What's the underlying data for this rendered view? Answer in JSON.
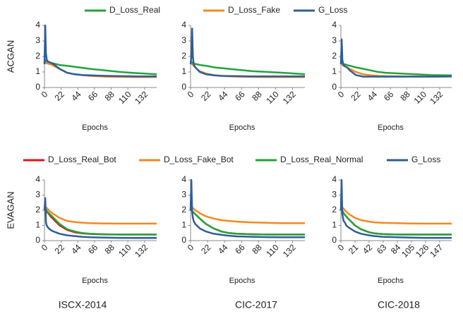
{
  "chart_data": [
    {
      "type": "line",
      "ylabel": "ACGAN",
      "xlabel": "Epochs",
      "x": [
        0,
        1,
        2,
        3,
        4,
        6,
        8,
        12,
        20,
        30,
        40,
        50,
        60,
        80,
        100,
        120,
        148
      ],
      "xlim": [
        0,
        148
      ],
      "xticks": [
        0,
        22,
        44,
        66,
        88,
        110,
        132
      ],
      "ylim": [
        0,
        4
      ],
      "yticks": [
        0,
        1,
        2,
        3,
        4
      ],
      "series": [
        {
          "name": "D_Loss_Real",
          "color": "#22a33a",
          "values": [
            1.8,
            1.75,
            1.7,
            1.68,
            1.65,
            1.62,
            1.6,
            1.55,
            1.45,
            1.4,
            1.33,
            1.27,
            1.2,
            1.1,
            1.0,
            0.93,
            0.85
          ]
        },
        {
          "name": "D_Loss_Fake",
          "color": "#f5881f",
          "values": [
            1.6,
            1.6,
            1.58,
            1.55,
            1.55,
            1.52,
            1.5,
            1.4,
            1.2,
            0.95,
            0.85,
            0.8,
            0.75,
            0.7,
            0.68,
            0.67,
            0.67
          ]
        },
        {
          "name": "G_Loss",
          "color": "#2f5d98",
          "values": [
            1.5,
            4.0,
            2.2,
            1.8,
            1.7,
            1.65,
            1.6,
            1.5,
            1.2,
            0.95,
            0.85,
            0.8,
            0.78,
            0.75,
            0.73,
            0.72,
            0.72
          ]
        }
      ]
    },
    {
      "type": "line",
      "xlabel": "Epochs",
      "x": [
        0,
        1,
        2,
        3,
        4,
        6,
        8,
        12,
        20,
        30,
        40,
        50,
        60,
        80,
        100,
        120,
        148
      ],
      "xlim": [
        0,
        148
      ],
      "xticks": [
        0,
        22,
        44,
        66,
        88,
        110,
        132
      ],
      "ylim": [
        0,
        4
      ],
      "yticks": [
        0,
        1,
        2,
        3,
        4
      ],
      "series": [
        {
          "color": "#22a33a",
          "values": [
            1.7,
            1.65,
            1.6,
            1.58,
            1.55,
            1.52,
            1.5,
            1.45,
            1.4,
            1.3,
            1.25,
            1.2,
            1.15,
            1.05,
            1.0,
            0.95,
            0.85
          ]
        },
        {
          "color": "#f5881f",
          "values": [
            1.6,
            1.55,
            1.5,
            1.45,
            1.4,
            1.3,
            1.2,
            1.05,
            0.9,
            0.8,
            0.75,
            0.72,
            0.7,
            0.68,
            0.67,
            0.67,
            0.67
          ]
        },
        {
          "color": "#2f5d98",
          "values": [
            1.5,
            2.0,
            3.8,
            2.0,
            1.5,
            1.3,
            1.2,
            1.0,
            0.85,
            0.78,
            0.75,
            0.74,
            0.73,
            0.72,
            0.72,
            0.72,
            0.72
          ]
        }
      ]
    },
    {
      "type": "line",
      "xlabel": "Epochs",
      "x": [
        0,
        1,
        2,
        3,
        4,
        6,
        8,
        12,
        20,
        30,
        40,
        50,
        60,
        80,
        100,
        120,
        148
      ],
      "xlim": [
        0,
        148
      ],
      "xticks": [
        0,
        22,
        44,
        66,
        88,
        110,
        132
      ],
      "ylim": [
        0,
        4
      ],
      "yticks": [
        0,
        1,
        2,
        3,
        4
      ],
      "series": [
        {
          "color": "#22a33a",
          "values": [
            1.6,
            1.6,
            1.55,
            1.55,
            1.5,
            1.48,
            1.45,
            1.4,
            1.3,
            1.2,
            1.1,
            1.0,
            0.95,
            0.9,
            0.85,
            0.8,
            0.78
          ]
        },
        {
          "color": "#f5881f",
          "values": [
            1.5,
            1.5,
            1.45,
            1.45,
            1.4,
            1.35,
            1.3,
            1.2,
            1.0,
            0.85,
            0.78,
            0.75,
            0.73,
            0.72,
            0.71,
            0.7,
            0.7
          ]
        },
        {
          "color": "#2f5d98",
          "values": [
            1.5,
            3.1,
            1.8,
            1.5,
            1.4,
            1.35,
            1.3,
            1.1,
            0.8,
            0.7,
            0.7,
            0.7,
            0.7,
            0.7,
            0.7,
            0.7,
            0.72
          ]
        }
      ]
    },
    {
      "type": "line",
      "ylabel": "EVAGAN",
      "xlabel": "Epochs",
      "caption": "ISCX-2014",
      "x": [
        0,
        1,
        2,
        3,
        4,
        6,
        8,
        12,
        20,
        30,
        40,
        50,
        60,
        80,
        100,
        120,
        148
      ],
      "xlim": [
        0,
        148
      ],
      "xticks": [
        0,
        22,
        44,
        66,
        88,
        110,
        132
      ],
      "ylim": [
        0,
        4
      ],
      "yticks": [
        0,
        1,
        2,
        3,
        4
      ],
      "series": [
        {
          "name": "D_Loss_Real_Bot",
          "color": "#e0151b",
          "values": [
            2.2,
            2.15,
            2.05,
            1.95,
            1.85,
            1.75,
            1.6,
            1.4,
            1.0,
            0.7,
            0.55,
            0.48,
            0.44,
            0.41,
            0.4,
            0.4,
            0.4
          ]
        },
        {
          "name": "D_Loss_Fake_Bot",
          "color": "#f5881f",
          "values": [
            2.3,
            2.25,
            2.2,
            2.15,
            2.1,
            2.0,
            1.9,
            1.75,
            1.5,
            1.3,
            1.22,
            1.18,
            1.15,
            1.13,
            1.12,
            1.12,
            1.12
          ]
        },
        {
          "name": "D_Loss_Real_Normal",
          "color": "#22a33a",
          "values": [
            2.2,
            2.1,
            2.0,
            1.95,
            1.9,
            1.8,
            1.7,
            1.5,
            1.1,
            0.75,
            0.6,
            0.5,
            0.45,
            0.42,
            0.4,
            0.4,
            0.4
          ]
        },
        {
          "name": "G_Loss",
          "color": "#2f5d98",
          "values": [
            2.0,
            2.8,
            1.2,
            1.0,
            0.9,
            0.8,
            0.7,
            0.6,
            0.45,
            0.35,
            0.3,
            0.25,
            0.22,
            0.2,
            0.18,
            0.17,
            0.17
          ]
        }
      ]
    },
    {
      "type": "line",
      "xlabel": "Epochs",
      "caption": "CIC-2017",
      "x": [
        0,
        1,
        2,
        3,
        4,
        6,
        8,
        12,
        20,
        30,
        40,
        50,
        60,
        80,
        100,
        120,
        148
      ],
      "xlim": [
        0,
        148
      ],
      "xticks": [
        0,
        22,
        44,
        66,
        88,
        110,
        132
      ],
      "ylim": [
        0,
        4
      ],
      "yticks": [
        0,
        1,
        2,
        3,
        4
      ],
      "series": [
        {
          "color": "#e0151b",
          "values": [
            2.1,
            2.0,
            1.95,
            1.9,
            1.85,
            1.75,
            1.65,
            1.45,
            1.1,
            0.8,
            0.6,
            0.5,
            0.45,
            0.42,
            0.4,
            0.4,
            0.4
          ]
        },
        {
          "color": "#f5881f",
          "values": [
            2.3,
            2.25,
            2.2,
            2.15,
            2.1,
            2.0,
            1.95,
            1.8,
            1.6,
            1.45,
            1.35,
            1.3,
            1.25,
            1.2,
            1.17,
            1.15,
            1.15
          ]
        },
        {
          "color": "#22a33a",
          "values": [
            2.1,
            2.0,
            1.95,
            1.9,
            1.85,
            1.75,
            1.65,
            1.45,
            1.1,
            0.8,
            0.6,
            0.5,
            0.45,
            0.42,
            0.4,
            0.4,
            0.4
          ]
        },
        {
          "color": "#2f5d98",
          "values": [
            2.0,
            4.0,
            1.9,
            1.5,
            1.3,
            1.1,
            1.0,
            0.8,
            0.6,
            0.45,
            0.38,
            0.32,
            0.28,
            0.25,
            0.23,
            0.22,
            0.22
          ]
        }
      ]
    },
    {
      "type": "line",
      "xlabel": "Epochs",
      "caption": "CIC-2018",
      "x": [
        0,
        1,
        2,
        3,
        4,
        6,
        8,
        12,
        21,
        30,
        42,
        50,
        63,
        84,
        105,
        126,
        165
      ],
      "xlim": [
        0,
        165
      ],
      "xticks": [
        0,
        21,
        42,
        63,
        84,
        105,
        126,
        147
      ],
      "ylim": [
        0,
        4
      ],
      "yticks": [
        0,
        1,
        2,
        3,
        4
      ],
      "series": [
        {
          "color": "#e0151b",
          "values": [
            2.1,
            2.0,
            1.95,
            1.9,
            1.8,
            1.7,
            1.6,
            1.4,
            1.0,
            0.75,
            0.55,
            0.48,
            0.43,
            0.4,
            0.4,
            0.4,
            0.4
          ]
        },
        {
          "color": "#f5881f",
          "values": [
            2.3,
            2.25,
            2.2,
            2.15,
            2.1,
            2.0,
            1.9,
            1.75,
            1.5,
            1.35,
            1.25,
            1.2,
            1.17,
            1.15,
            1.13,
            1.12,
            1.12
          ]
        },
        {
          "color": "#22a33a",
          "values": [
            2.1,
            2.0,
            1.95,
            1.9,
            1.8,
            1.7,
            1.6,
            1.4,
            1.0,
            0.75,
            0.55,
            0.48,
            0.43,
            0.4,
            0.4,
            0.4,
            0.4
          ]
        },
        {
          "color": "#2f5d98",
          "values": [
            2.0,
            4.0,
            1.8,
            1.5,
            1.3,
            1.2,
            1.0,
            0.85,
            0.6,
            0.45,
            0.35,
            0.3,
            0.25,
            0.22,
            0.2,
            0.18,
            0.18
          ]
        }
      ]
    }
  ]
}
